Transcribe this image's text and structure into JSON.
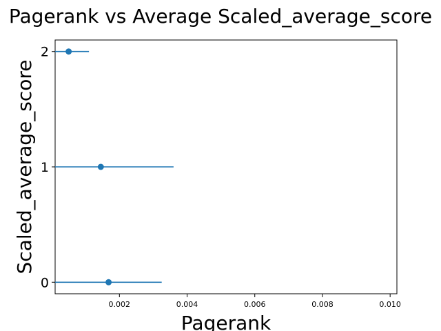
{
  "chart_data": {
    "type": "scatter",
    "title": "Pagerank vs Average Scaled_average_score",
    "xlabel": "Pagerank",
    "ylabel": "Scaled_average_score",
    "xlim": [
      0.0001,
      0.0102
    ],
    "ylim": [
      -0.1,
      2.1
    ],
    "x_ticks": [
      0.002,
      0.004,
      0.006,
      0.008,
      0.01
    ],
    "x_tick_labels": [
      "0.002",
      "0.004",
      "0.006",
      "0.008",
      "0.010"
    ],
    "y_ticks": [
      0,
      1,
      2
    ],
    "y_tick_labels": [
      "0",
      "1",
      "2"
    ],
    "grid": false,
    "color": "#1f77b4",
    "series": [
      {
        "points": [
          {
            "y": 0,
            "x": 0.00168,
            "xerr_low": 0.0001,
            "xerr_high": 0.00325
          },
          {
            "y": 1,
            "x": 0.00145,
            "xerr_low": 0.0001,
            "xerr_high": 0.0036
          },
          {
            "y": 2,
            "x": 0.0005,
            "xerr_low": 0.0001,
            "xerr_high": 0.0011
          }
        ]
      }
    ]
  }
}
